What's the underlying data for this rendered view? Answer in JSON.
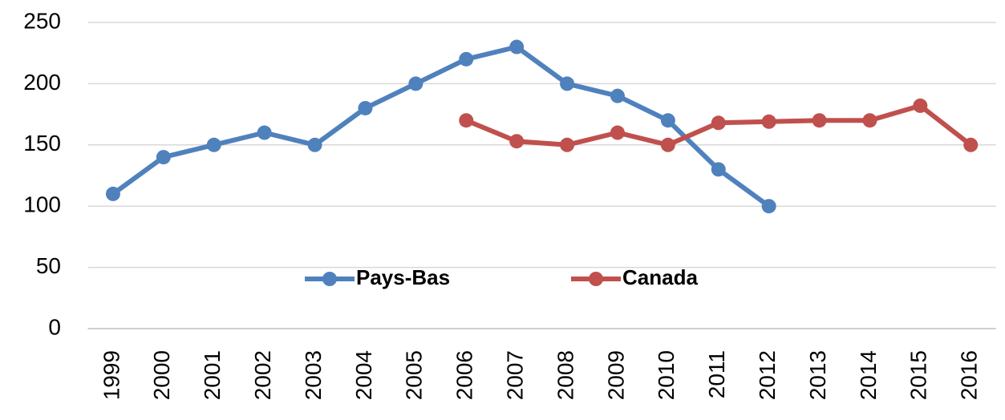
{
  "chart_data": {
    "type": "line",
    "categories": [
      "1999",
      "2000",
      "2001",
      "2002",
      "2003",
      "2004",
      "2005",
      "2006",
      "2007",
      "2008",
      "2009",
      "2010",
      "2011",
      "2012",
      "2013",
      "2014",
      "2015",
      "2016"
    ],
    "series": [
      {
        "name": "Pays-Bas",
        "color": "#4f81bd",
        "values": [
          110,
          140,
          150,
          160,
          150,
          180,
          200,
          220,
          230,
          200,
          190,
          170,
          130,
          100,
          null,
          null,
          null,
          null
        ]
      },
      {
        "name": "Canada",
        "color": "#c0504d",
        "values": [
          null,
          null,
          null,
          null,
          null,
          null,
          null,
          170,
          153,
          150,
          160,
          150,
          168,
          169,
          170,
          170,
          182,
          150
        ]
      }
    ],
    "ylim": [
      0,
      250
    ],
    "yticks": [
      0,
      50,
      100,
      150,
      200,
      250
    ],
    "grid": true,
    "legend": "center"
  }
}
